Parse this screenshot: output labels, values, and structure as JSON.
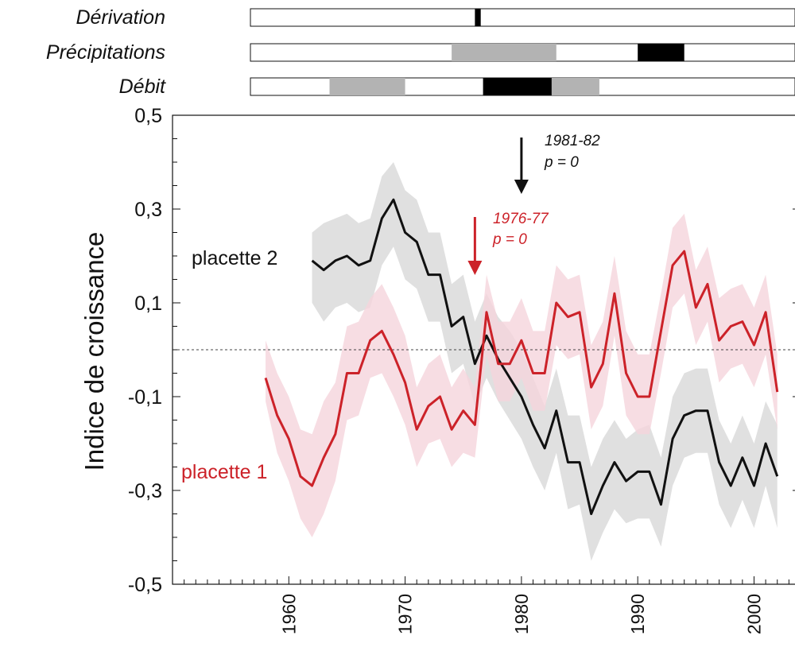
{
  "chart_data": {
    "type": "line",
    "ylabel": "Indice de croissance",
    "xlabel": "",
    "ylim": [
      -0.5,
      0.5
    ],
    "xlim": [
      1950,
      2004
    ],
    "yticks": [
      0.5,
      0.3,
      0.1,
      -0.1,
      -0.3,
      -0.5
    ],
    "ytick_labels": [
      "0,5",
      "0,3",
      "0,1",
      "-0,1",
      "-0,3",
      "-0,5"
    ],
    "xticks": [
      1960,
      1970,
      1980,
      1990,
      2000
    ],
    "xtick_labels": [
      "1960",
      "1970",
      "1980",
      "1990",
      "2000"
    ],
    "reference_line": 0,
    "colors": {
      "placette1": "#cc2229",
      "placette1_band": "#f5d5dc",
      "placette2": "#111111",
      "placette2_band": "#dadada",
      "bar_dark": "#000000",
      "bar_light": "#b3b3b3"
    },
    "series": [
      {
        "name": "placette 1",
        "x": [
          1958,
          1959,
          1960,
          1961,
          1962,
          1963,
          1964,
          1965,
          1966,
          1967,
          1968,
          1969,
          1970,
          1971,
          1972,
          1973,
          1974,
          1975,
          1976,
          1977,
          1978,
          1979,
          1980,
          1981,
          1982,
          1983,
          1984,
          1985,
          1986,
          1987,
          1988,
          1989,
          1990,
          1991,
          1992,
          1993,
          1994,
          1995,
          1996,
          1997,
          1998,
          1999,
          2000,
          2001,
          2002
        ],
        "values": [
          -0.06,
          -0.14,
          -0.19,
          -0.27,
          -0.29,
          -0.23,
          -0.18,
          -0.05,
          -0.05,
          0.02,
          0.04,
          -0.01,
          -0.07,
          -0.17,
          -0.12,
          -0.1,
          -0.17,
          -0.13,
          -0.16,
          0.08,
          -0.03,
          -0.03,
          0.02,
          -0.05,
          -0.05,
          0.1,
          0.07,
          0.08,
          -0.08,
          -0.03,
          0.12,
          -0.05,
          -0.1,
          -0.1,
          0.04,
          0.18,
          0.21,
          0.09,
          0.14,
          0.02,
          0.05,
          0.06,
          0.01,
          0.08,
          -0.09
        ],
        "lower": [
          -0.11,
          -0.22,
          -0.28,
          -0.36,
          -0.4,
          -0.35,
          -0.28,
          -0.15,
          -0.14,
          -0.06,
          -0.05,
          -0.1,
          -0.16,
          -0.25,
          -0.2,
          -0.19,
          -0.25,
          -0.22,
          -0.23,
          -0.01,
          -0.11,
          -0.11,
          -0.06,
          -0.13,
          -0.13,
          0.01,
          -0.02,
          -0.01,
          -0.17,
          -0.12,
          0.03,
          -0.14,
          -0.18,
          -0.18,
          -0.05,
          0.09,
          0.12,
          0.01,
          0.06,
          -0.07,
          -0.04,
          -0.03,
          -0.08,
          -0.01,
          -0.17
        ],
        "upper": [
          0.02,
          -0.05,
          -0.1,
          -0.17,
          -0.18,
          -0.11,
          -0.07,
          0.05,
          0.06,
          0.11,
          0.14,
          0.09,
          0.03,
          -0.08,
          -0.03,
          -0.01,
          -0.08,
          -0.04,
          -0.08,
          0.16,
          0.06,
          0.06,
          0.11,
          0.04,
          0.04,
          0.18,
          0.15,
          0.16,
          0.01,
          0.06,
          0.2,
          0.04,
          -0.01,
          -0.01,
          0.12,
          0.26,
          0.29,
          0.17,
          0.22,
          0.11,
          0.13,
          0.14,
          0.09,
          0.16,
          -0.01
        ]
      },
      {
        "name": "placette 2",
        "x": [
          1962,
          1963,
          1964,
          1965,
          1966,
          1967,
          1968,
          1969,
          1970,
          1971,
          1972,
          1973,
          1974,
          1975,
          1976,
          1977,
          1978,
          1979,
          1980,
          1981,
          1982,
          1983,
          1984,
          1985,
          1986,
          1987,
          1988,
          1989,
          1990,
          1991,
          1992,
          1993,
          1994,
          1995,
          1996,
          1997,
          1998,
          1999,
          2000,
          2001,
          2002
        ],
        "values": [
          0.19,
          0.17,
          0.19,
          0.2,
          0.18,
          0.19,
          0.28,
          0.32,
          0.25,
          0.23,
          0.16,
          0.16,
          0.05,
          0.07,
          -0.03,
          0.03,
          -0.02,
          -0.06,
          -0.1,
          -0.16,
          -0.21,
          -0.13,
          -0.24,
          -0.24,
          -0.35,
          -0.29,
          -0.24,
          -0.28,
          -0.26,
          -0.26,
          -0.33,
          -0.19,
          -0.14,
          -0.13,
          -0.13,
          -0.24,
          -0.29,
          -0.23,
          -0.29,
          -0.2,
          -0.27
        ],
        "lower": [
          0.1,
          0.06,
          0.09,
          0.1,
          0.08,
          0.09,
          0.18,
          0.22,
          0.15,
          0.13,
          0.06,
          0.06,
          -0.05,
          -0.03,
          -0.12,
          -0.06,
          -0.11,
          -0.15,
          -0.19,
          -0.25,
          -0.3,
          -0.22,
          -0.34,
          -0.33,
          -0.45,
          -0.39,
          -0.34,
          -0.37,
          -0.36,
          -0.36,
          -0.42,
          -0.29,
          -0.23,
          -0.22,
          -0.22,
          -0.33,
          -0.38,
          -0.32,
          -0.38,
          -0.29,
          -0.38
        ],
        "upper": [
          0.25,
          0.27,
          0.28,
          0.29,
          0.27,
          0.28,
          0.37,
          0.4,
          0.34,
          0.32,
          0.25,
          0.25,
          0.14,
          0.16,
          0.06,
          0.12,
          0.07,
          0.04,
          0.0,
          -0.06,
          -0.12,
          -0.04,
          -0.14,
          -0.14,
          -0.25,
          -0.19,
          -0.15,
          -0.19,
          -0.17,
          -0.16,
          -0.23,
          -0.1,
          -0.05,
          -0.04,
          -0.04,
          -0.15,
          -0.2,
          -0.14,
          -0.2,
          -0.11,
          -0.16
        ]
      }
    ],
    "annotations": [
      {
        "text": "1981-82",
        "text2": "p = 0",
        "x": 1980,
        "color": "#111111"
      },
      {
        "text": "1976-77",
        "text2": "p = 0",
        "x": 1976,
        "color": "#cc2229"
      }
    ],
    "period_bars": [
      {
        "label": "Dérivation",
        "segments": [
          {
            "start": 1976,
            "end": 1976.5,
            "shade": "dark"
          }
        ]
      },
      {
        "label": "Précipitations",
        "segments": [
          {
            "start": 1974,
            "end": 1983,
            "shade": "light"
          },
          {
            "start": 1990,
            "end": 1994,
            "shade": "dark"
          }
        ]
      },
      {
        "label": "Débit",
        "segments": [
          {
            "start": 1963.5,
            "end": 1970,
            "shade": "light"
          },
          {
            "start": 1976.7,
            "end": 1982.6,
            "shade": "dark"
          },
          {
            "start": 1982.6,
            "end": 1986.7,
            "shade": "light"
          }
        ]
      }
    ]
  }
}
